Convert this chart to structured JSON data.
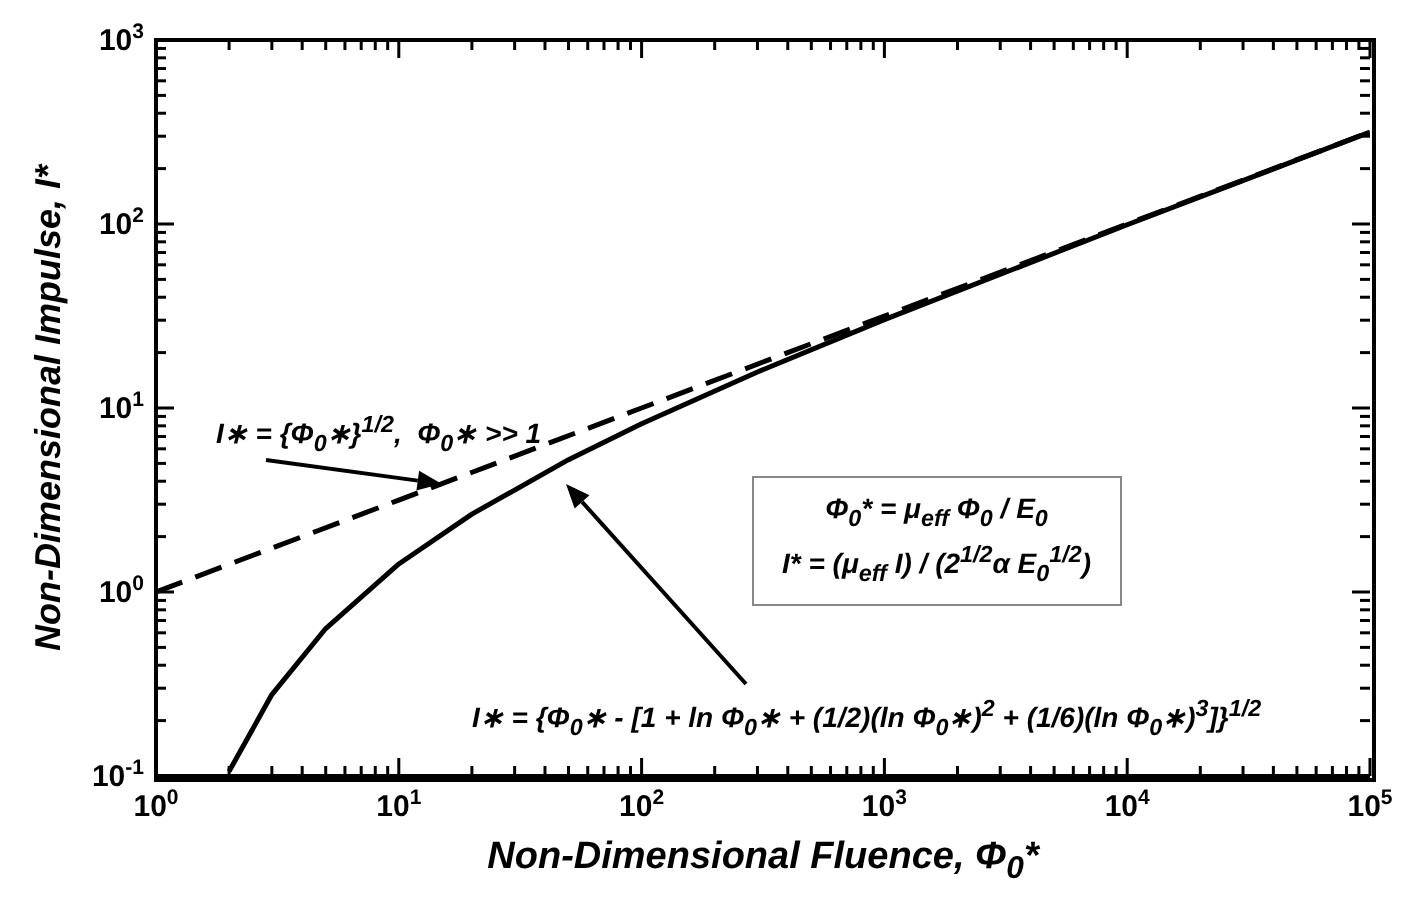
{
  "chart_data": {
    "type": "line",
    "xlabel": "Non-Dimensional Fluence, Φ$_{0}$*",
    "ylabel": "Non-Dimensional Impulse, I*",
    "log": "xy",
    "marker": "none",
    "xlim": [
      1,
      100000
    ],
    "ylim": [
      0.1,
      1000
    ],
    "xticks": [
      {
        "value": 1,
        "label": "10$^{0}$"
      },
      {
        "value": 2,
        "label": null
      },
      {
        "value": 3,
        "label": null
      },
      {
        "value": 4,
        "label": null
      },
      {
        "value": 5,
        "label": null
      },
      {
        "value": 6,
        "label": null
      },
      {
        "value": 7,
        "label": null
      },
      {
        "value": 8,
        "label": null
      },
      {
        "value": 9,
        "label": null
      },
      {
        "value": 10,
        "label": "10$^{1}$"
      },
      {
        "value": 20,
        "label": null
      },
      {
        "value": 30,
        "label": null
      },
      {
        "value": 40,
        "label": null
      },
      {
        "value": 50,
        "label": null
      },
      {
        "value": 60,
        "label": null
      },
      {
        "value": 70,
        "label": null
      },
      {
        "value": 80,
        "label": null
      },
      {
        "value": 90,
        "label": null
      },
      {
        "value": 100,
        "label": "10$^{2}$"
      },
      {
        "value": 200,
        "label": null
      },
      {
        "value": 300,
        "label": null
      },
      {
        "value": 400,
        "label": null
      },
      {
        "value": 500,
        "label": null
      },
      {
        "value": 600,
        "label": null
      },
      {
        "value": 700,
        "label": null
      },
      {
        "value": 800,
        "label": null
      },
      {
        "value": 900,
        "label": null
      },
      {
        "value": 1000,
        "label": "10$^{3}$"
      },
      {
        "value": 2000,
        "label": null
      },
      {
        "value": 3000,
        "label": null
      },
      {
        "value": 4000,
        "label": null
      },
      {
        "value": 5000,
        "label": null
      },
      {
        "value": 6000,
        "label": null
      },
      {
        "value": 7000,
        "label": null
      },
      {
        "value": 8000,
        "label": null
      },
      {
        "value": 9000,
        "label": null
      },
      {
        "value": 10000,
        "label": "10$^{4}$"
      },
      {
        "value": 20000,
        "label": null
      },
      {
        "value": 30000,
        "label": null
      },
      {
        "value": 40000,
        "label": null
      },
      {
        "value": 50000,
        "label": null
      },
      {
        "value": 60000,
        "label": null
      },
      {
        "value": 70000,
        "label": null
      },
      {
        "value": 80000,
        "label": null
      },
      {
        "value": 90000,
        "label": null
      },
      {
        "value": 100000,
        "label": "10$^{5}$"
      }
    ],
    "yticks": [
      {
        "value": 0.1,
        "label": "10$^{-1}$"
      },
      {
        "value": 0.2,
        "label": null
      },
      {
        "value": 0.3,
        "label": null
      },
      {
        "value": 0.4,
        "label": null
      },
      {
        "value": 0.5,
        "label": null
      },
      {
        "value": 0.6,
        "label": null
      },
      {
        "value": 0.7,
        "label": null
      },
      {
        "value": 0.8,
        "label": null
      },
      {
        "value": 0.9,
        "label": null
      },
      {
        "value": 1,
        "label": "10$^{0}$"
      },
      {
        "value": 2,
        "label": null
      },
      {
        "value": 3,
        "label": null
      },
      {
        "value": 4,
        "label": null
      },
      {
        "value": 5,
        "label": null
      },
      {
        "value": 6,
        "label": null
      },
      {
        "value": 7,
        "label": null
      },
      {
        "value": 8,
        "label": null
      },
      {
        "value": 9,
        "label": null
      },
      {
        "value": 10,
        "label": "10$^{1}$"
      },
      {
        "value": 20,
        "label": null
      },
      {
        "value": 30,
        "label": null
      },
      {
        "value": 40,
        "label": null
      },
      {
        "value": 50,
        "label": null
      },
      {
        "value": 60,
        "label": null
      },
      {
        "value": 70,
        "label": null
      },
      {
        "value": 80,
        "label": null
      },
      {
        "value": 90,
        "label": null
      },
      {
        "value": 100,
        "label": "10$^{2}$"
      },
      {
        "value": 200,
        "label": null
      },
      {
        "value": 300,
        "label": null
      },
      {
        "value": 400,
        "label": null
      },
      {
        "value": 500,
        "label": null
      },
      {
        "value": 600,
        "label": null
      },
      {
        "value": 700,
        "label": null
      },
      {
        "value": 800,
        "label": null
      },
      {
        "value": 900,
        "label": null
      },
      {
        "value": 1000,
        "label": "10$^{3}$"
      }
    ],
    "series": [
      {
        "color": "#000000",
        "line_style": "dashed",
        "x": [
          1,
          10,
          100,
          1000,
          10000,
          100000
        ],
        "values": [
          1,
          3.16,
          10,
          31.6,
          100,
          316
        ]
      },
      {
        "color": "#000000",
        "line_style": "solid",
        "x": [
          2,
          3,
          5,
          10,
          20,
          50,
          100,
          300,
          1000,
          10000,
          100000
        ],
        "values": [
          0.106,
          0.277,
          0.633,
          1.42,
          2.65,
          5.24,
          8.22,
          15.7,
          30.2,
          99.1,
          316
        ]
      }
    ],
    "annotations": [
      {
        "text": "I∗ = {Φ$_{0}$∗}$^{1/2}$,  Φ$_{0}$∗ >> 1",
        "x": 15,
        "y": 3.87
      },
      "Φ$_{0}$* = μ$_{eff}$ Φ$_{0}$ / E$_{0}$\nI* = (μ$_{eff}$ I) / (2$^{1/2}$α E$_{0}$$^{1/2}$)",
      "I∗ = {Φ$_{0}$∗ - [1 + ln Φ$_{0}$∗ + (1/2)(ln Φ$_{0}$∗)$^{2}$ + (1/6)(ln Φ$_{0}$∗)$^{3}$]}$^{1/2}$"
    ]
  }
}
